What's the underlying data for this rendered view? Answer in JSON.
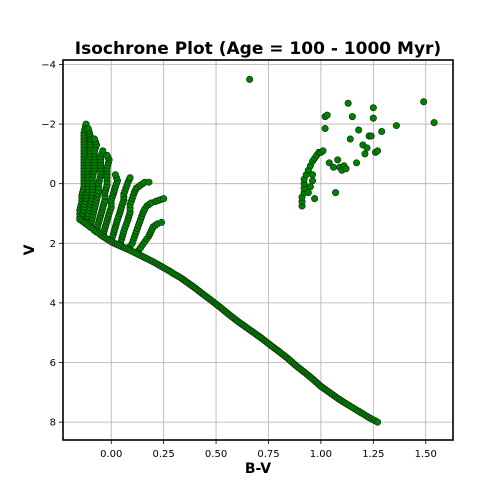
{
  "chart_data": {
    "type": "scatter",
    "title": "Isochrone Plot (Age = 100 - 1000 Myr)",
    "xlabel": "B-V",
    "ylabel": "V",
    "xlim": [
      -0.23,
      1.63
    ],
    "ylim": [
      8.6,
      -4.15
    ],
    "y_inverted": true,
    "grid": true,
    "marker_color": "#008000",
    "marker_edge": "#0a2a0a",
    "x_ticks": [
      0.0,
      0.25,
      0.5,
      0.75,
      1.0,
      1.25,
      1.5
    ],
    "x_tick_labels": [
      "0.00",
      "0.25",
      "0.50",
      "0.75",
      "1.00",
      "1.25",
      "1.50"
    ],
    "y_ticks": [
      -4,
      -2,
      0,
      2,
      4,
      6,
      8
    ],
    "y_tick_labels": [
      "−4",
      "−2",
      "0",
      "2",
      "4",
      "6",
      "8"
    ],
    "main_sequence": [
      [
        -0.15,
        1.2
      ],
      [
        -0.14,
        1.25
      ],
      [
        -0.13,
        1.3
      ],
      [
        -0.12,
        1.33
      ],
      [
        -0.11,
        1.4
      ],
      [
        -0.1,
        1.46
      ],
      [
        -0.09,
        1.5
      ],
      [
        -0.08,
        1.57
      ],
      [
        -0.07,
        1.62
      ],
      [
        -0.06,
        1.66
      ],
      [
        -0.05,
        1.72
      ],
      [
        -0.04,
        1.77
      ],
      [
        -0.03,
        1.81
      ],
      [
        -0.02,
        1.86
      ],
      [
        -0.01,
        1.9
      ],
      [
        0.0,
        1.95
      ],
      [
        0.02,
        2.02
      ],
      [
        0.04,
        2.08
      ],
      [
        0.06,
        2.14
      ],
      [
        0.08,
        2.2
      ],
      [
        0.1,
        2.27
      ],
      [
        0.12,
        2.34
      ],
      [
        0.14,
        2.41
      ],
      [
        0.16,
        2.48
      ],
      [
        0.18,
        2.55
      ],
      [
        0.2,
        2.62
      ],
      [
        0.22,
        2.7
      ],
      [
        0.24,
        2.78
      ],
      [
        0.26,
        2.86
      ],
      [
        0.28,
        2.94
      ],
      [
        0.3,
        3.03
      ],
      [
        0.33,
        3.15
      ],
      [
        0.36,
        3.3
      ],
      [
        0.4,
        3.5
      ],
      [
        0.44,
        3.72
      ],
      [
        0.48,
        3.93
      ],
      [
        0.52,
        4.15
      ],
      [
        0.56,
        4.38
      ],
      [
        0.6,
        4.6
      ],
      [
        0.64,
        4.8
      ],
      [
        0.68,
        5.0
      ],
      [
        0.72,
        5.2
      ],
      [
        0.76,
        5.42
      ],
      [
        0.8,
        5.63
      ],
      [
        0.84,
        5.85
      ],
      [
        0.88,
        6.1
      ],
      [
        0.92,
        6.32
      ],
      [
        0.96,
        6.55
      ],
      [
        1.0,
        6.8
      ],
      [
        1.04,
        7.0
      ],
      [
        1.08,
        7.2
      ],
      [
        1.12,
        7.38
      ],
      [
        1.16,
        7.55
      ],
      [
        1.2,
        7.72
      ],
      [
        1.23,
        7.85
      ],
      [
        1.26,
        7.96
      ],
      [
        1.27,
        8.0
      ]
    ],
    "turnoff_branches": [
      [
        [
          -0.15,
          1.15
        ],
        [
          -0.15,
          0.9
        ],
        [
          -0.14,
          0.6
        ],
        [
          -0.14,
          0.4
        ],
        [
          -0.13,
          0.1
        ],
        [
          -0.13,
          -0.2
        ],
        [
          -0.13,
          -0.5
        ],
        [
          -0.13,
          -0.8
        ],
        [
          -0.13,
          -1.1
        ],
        [
          -0.13,
          -1.4
        ],
        [
          -0.13,
          -1.7
        ],
        [
          -0.12,
          -2.0
        ]
      ],
      [
        [
          -0.14,
          1.2
        ],
        [
          -0.13,
          0.8
        ],
        [
          -0.12,
          0.5
        ],
        [
          -0.11,
          0.2
        ],
        [
          -0.11,
          -0.1
        ],
        [
          -0.11,
          -0.4
        ],
        [
          -0.11,
          -0.7
        ],
        [
          -0.1,
          -1.0
        ],
        [
          -0.1,
          -1.3
        ],
        [
          -0.1,
          -1.6
        ],
        [
          -0.11,
          -1.85
        ]
      ],
      [
        [
          -0.12,
          1.35
        ],
        [
          -0.11,
          1.0
        ],
        [
          -0.1,
          0.7
        ],
        [
          -0.09,
          0.4
        ],
        [
          -0.09,
          0.1
        ],
        [
          -0.09,
          -0.2
        ],
        [
          -0.08,
          -0.5
        ],
        [
          -0.08,
          -0.8
        ],
        [
          -0.08,
          -1.1
        ],
        [
          -0.07,
          -1.3
        ],
        [
          -0.08,
          -1.5
        ]
      ],
      [
        [
          -0.1,
          1.45
        ],
        [
          -0.09,
          1.15
        ],
        [
          -0.08,
          0.85
        ],
        [
          -0.07,
          0.55
        ],
        [
          -0.06,
          0.25
        ],
        [
          -0.06,
          0.0
        ],
        [
          -0.05,
          -0.3
        ],
        [
          -0.05,
          -0.6
        ],
        [
          -0.05,
          -0.9
        ],
        [
          -0.04,
          -1.1
        ]
      ],
      [
        [
          -0.07,
          1.6
        ],
        [
          -0.06,
          1.3
        ],
        [
          -0.05,
          1.05
        ],
        [
          -0.04,
          0.8
        ],
        [
          -0.03,
          0.55
        ],
        [
          -0.03,
          0.3
        ],
        [
          -0.02,
          0.05
        ],
        [
          -0.02,
          -0.2
        ],
        [
          -0.02,
          -0.5
        ],
        [
          -0.01,
          -0.8
        ],
        [
          -0.02,
          -0.95
        ]
      ],
      [
        [
          -0.04,
          1.75
        ],
        [
          -0.03,
          1.5
        ],
        [
          -0.02,
          1.25
        ],
        [
          -0.01,
          1.0
        ],
        [
          0.0,
          0.8
        ],
        [
          0.0,
          0.55
        ],
        [
          0.01,
          0.35
        ],
        [
          0.02,
          0.1
        ],
        [
          0.03,
          -0.1
        ],
        [
          0.02,
          -0.3
        ]
      ],
      [
        [
          0.0,
          1.93
        ],
        [
          0.01,
          1.7
        ],
        [
          0.02,
          1.45
        ],
        [
          0.03,
          1.2
        ],
        [
          0.04,
          1.0
        ],
        [
          0.05,
          0.75
        ],
        [
          0.06,
          0.55
        ],
        [
          0.06,
          0.35
        ],
        [
          0.07,
          0.15
        ],
        [
          0.08,
          -0.05
        ],
        [
          0.09,
          -0.2
        ]
      ],
      [
        [
          0.04,
          2.08
        ],
        [
          0.05,
          1.85
        ],
        [
          0.06,
          1.6
        ],
        [
          0.07,
          1.4
        ],
        [
          0.08,
          1.2
        ],
        [
          0.09,
          0.95
        ],
        [
          0.09,
          0.7
        ],
        [
          0.1,
          0.5
        ],
        [
          0.11,
          0.3
        ],
        [
          0.12,
          0.15
        ],
        [
          0.14,
          0.05
        ],
        [
          0.16,
          -0.05
        ],
        [
          0.18,
          -0.05
        ]
      ],
      [
        [
          0.08,
          2.2
        ],
        [
          0.1,
          2.0
        ],
        [
          0.11,
          1.8
        ],
        [
          0.12,
          1.6
        ],
        [
          0.13,
          1.4
        ],
        [
          0.14,
          1.2
        ],
        [
          0.15,
          1.0
        ],
        [
          0.16,
          0.85
        ],
        [
          0.17,
          0.75
        ],
        [
          0.19,
          0.65
        ],
        [
          0.21,
          0.6
        ],
        [
          0.25,
          0.5
        ]
      ],
      [
        [
          0.12,
          2.33
        ],
        [
          0.14,
          2.15
        ],
        [
          0.16,
          1.95
        ],
        [
          0.18,
          1.75
        ],
        [
          0.19,
          1.6
        ],
        [
          0.2,
          1.45
        ],
        [
          0.22,
          1.35
        ],
        [
          0.24,
          1.3
        ]
      ]
    ],
    "giant_branch": [
      [
        0.91,
        0.75
      ],
      [
        0.91,
        0.6
      ],
      [
        0.91,
        0.45
      ],
      [
        0.92,
        0.3
      ],
      [
        0.92,
        0.15
      ],
      [
        0.92,
        0.0
      ],
      [
        0.92,
        -0.15
      ],
      [
        0.93,
        -0.3
      ],
      [
        0.94,
        -0.45
      ],
      [
        0.95,
        -0.6
      ],
      [
        0.96,
        -0.75
      ],
      [
        0.97,
        -0.85
      ],
      [
        0.98,
        -0.95
      ],
      [
        0.99,
        -1.05
      ],
      [
        1.0,
        -1.05
      ],
      [
        1.01,
        -1.1
      ],
      [
        0.94,
        0.3
      ],
      [
        0.95,
        0.1
      ],
      [
        0.96,
        -0.1
      ],
      [
        0.96,
        -0.3
      ],
      [
        0.97,
        0.5
      ],
      [
        1.02,
        -1.85
      ],
      [
        1.02,
        -2.25
      ],
      [
        1.03,
        -2.3
      ],
      [
        1.04,
        -0.7
      ],
      [
        1.06,
        -0.55
      ],
      [
        1.07,
        0.3
      ],
      [
        1.08,
        -0.8
      ],
      [
        1.09,
        -0.55
      ],
      [
        1.1,
        -0.45
      ],
      [
        1.11,
        -0.6
      ],
      [
        1.12,
        -0.5
      ],
      [
        1.13,
        -2.7
      ],
      [
        1.14,
        -1.5
      ],
      [
        1.15,
        -2.25
      ],
      [
        1.17,
        -0.7
      ],
      [
        1.18,
        -1.8
      ],
      [
        1.2,
        -1.3
      ],
      [
        1.21,
        -1.0
      ],
      [
        1.22,
        -1.2
      ],
      [
        1.23,
        -1.6
      ],
      [
        1.24,
        -1.6
      ],
      [
        1.25,
        -2.2
      ],
      [
        1.25,
        -2.55
      ],
      [
        1.26,
        -1.05
      ],
      [
        1.27,
        -1.1
      ],
      [
        1.29,
        -1.75
      ],
      [
        1.36,
        -1.95
      ],
      [
        0.66,
        -3.5
      ],
      [
        1.49,
        -2.75
      ],
      [
        1.54,
        -2.05
      ]
    ]
  }
}
